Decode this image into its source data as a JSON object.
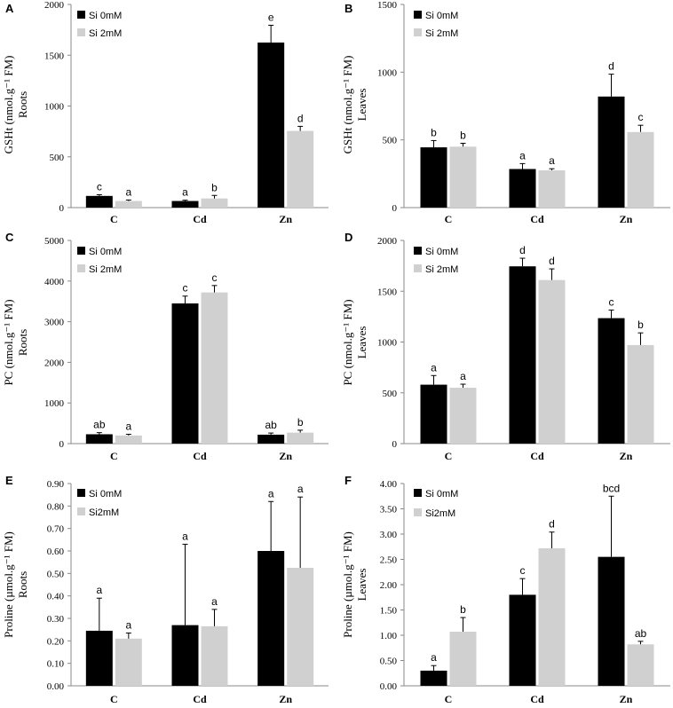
{
  "colors": {
    "series_0": "#000000",
    "series_1": "#d0d0d0",
    "axis": "#8a8a8a"
  },
  "chart_data": [
    {
      "panel": "A",
      "type": "bar",
      "ylabel_line1": "GSHt (nmol.g⁻¹ FM)",
      "ylabel_line2": "Roots",
      "categories": [
        "C",
        "Cd",
        "Zn"
      ],
      "ylim": [
        0,
        2000
      ],
      "yticks": [
        0,
        500,
        1000,
        1500,
        2000
      ],
      "ytick_labels": [
        "0",
        "500",
        "1000",
        "1500",
        "2000"
      ],
      "series": [
        {
          "name": "Si 0mM",
          "values": [
            115,
            65,
            1625
          ],
          "errors": [
            12,
            8,
            170
          ],
          "letters": [
            "c",
            "a",
            "e"
          ]
        },
        {
          "name": "Si 2mM",
          "values": [
            65,
            90,
            755
          ],
          "errors": [
            10,
            30,
            45
          ],
          "letters": [
            "a",
            "b",
            "d"
          ]
        }
      ]
    },
    {
      "panel": "B",
      "type": "bar",
      "ylabel_line1": "GSHt (nmol.g⁻¹ FM)",
      "ylabel_line2": "Leaves",
      "categories": [
        "C",
        "Cd",
        "Zn"
      ],
      "ylim": [
        0,
        1500
      ],
      "yticks": [
        0,
        500,
        1000,
        1500
      ],
      "ytick_labels": [
        "0",
        "500",
        "1000",
        "1500"
      ],
      "series": [
        {
          "name": "Si 0mM",
          "values": [
            445,
            285,
            820
          ],
          "errors": [
            50,
            40,
            165
          ],
          "letters": [
            "b",
            "a",
            "d"
          ]
        },
        {
          "name": "Si 2mM",
          "values": [
            450,
            275,
            558
          ],
          "errors": [
            25,
            12,
            50
          ],
          "letters": [
            "b",
            "a",
            "c"
          ]
        }
      ]
    },
    {
      "panel": "C",
      "type": "bar",
      "ylabel_line1": "PC (nmol.g⁻¹ FM)",
      "ylabel_line2": "Roots",
      "categories": [
        "C",
        "Cd",
        "Zn"
      ],
      "ylim": [
        0,
        5000
      ],
      "yticks": [
        0,
        1000,
        2000,
        3000,
        4000,
        5000
      ],
      "ytick_labels": [
        "0",
        "1000",
        "2000",
        "3000",
        "4000",
        "5000"
      ],
      "series": [
        {
          "name": "Si 0mM",
          "values": [
            230,
            3450,
            220
          ],
          "errors": [
            40,
            180,
            40
          ],
          "letters": [
            "ab",
            "c",
            "ab"
          ]
        },
        {
          "name": "Si 2mM",
          "values": [
            200,
            3720,
            270
          ],
          "errors": [
            30,
            170,
            60
          ],
          "letters": [
            "a",
            "c",
            "b"
          ]
        }
      ]
    },
    {
      "panel": "D",
      "type": "bar",
      "ylabel_line1": "PC (nmol.g⁻¹ FM)",
      "ylabel_line2": "Leaves",
      "categories": [
        "C",
        "Cd",
        "Zn"
      ],
      "ylim": [
        0,
        2000
      ],
      "yticks": [
        0,
        500,
        1000,
        1500,
        2000
      ],
      "ytick_labels": [
        "0",
        "500",
        "1000",
        "1500",
        "2000"
      ],
      "series": [
        {
          "name": "Si 0mM",
          "values": [
            580,
            1745,
            1235
          ],
          "errors": [
            90,
            80,
            80
          ],
          "letters": [
            "a",
            "d",
            "c"
          ]
        },
        {
          "name": "Si 2mM",
          "values": [
            550,
            1610,
            970
          ],
          "errors": [
            35,
            110,
            120
          ],
          "letters": [
            "a",
            "d",
            "b"
          ]
        }
      ]
    },
    {
      "panel": "E",
      "type": "bar",
      "ylabel_line1": "Proline (µmol.g⁻¹ FM)",
      "ylabel_line2": "Roots",
      "categories": [
        "C",
        "Cd",
        "Zn"
      ],
      "ylim": [
        0,
        0.9
      ],
      "yticks": [
        0,
        0.1,
        0.2,
        0.3,
        0.4,
        0.5,
        0.6,
        0.7,
        0.8,
        0.9
      ],
      "ytick_labels": [
        "0.00",
        "0.10",
        "0.20",
        "0.30",
        "0.40",
        "0.50",
        "0.60",
        "0.70",
        "0.80",
        "0.90"
      ],
      "series": [
        {
          "name": "Si 0mM",
          "values": [
            0.245,
            0.27,
            0.6
          ],
          "errors": [
            0.145,
            0.36,
            0.22
          ],
          "letters": [
            "a",
            "a",
            "a"
          ]
        },
        {
          "name": "Si2mM",
          "values": [
            0.21,
            0.265,
            0.525
          ],
          "errors": [
            0.025,
            0.075,
            0.315
          ],
          "letters": [
            "a",
            "a",
            "a"
          ]
        }
      ]
    },
    {
      "panel": "F",
      "type": "bar",
      "ylabel_line1": "Proline (µmol.g⁻¹ FM)",
      "ylabel_line2": "Leaves",
      "categories": [
        "C",
        "Cd",
        "Zn"
      ],
      "ylim": [
        0,
        4
      ],
      "yticks": [
        0,
        0.5,
        1,
        1.5,
        2,
        2.5,
        3,
        3.5,
        4
      ],
      "ytick_labels": [
        "0.00",
        "0.50",
        "1.00",
        "1.50",
        "2.00",
        "2.50",
        "3.00",
        "3.50",
        "4.00"
      ],
      "series": [
        {
          "name": "Si 0mM",
          "values": [
            0.3,
            1.8,
            2.55
          ],
          "errors": [
            0.1,
            0.32,
            1.2
          ],
          "letters": [
            "a",
            "c",
            "bcd"
          ]
        },
        {
          "name": "Si2mM",
          "values": [
            1.07,
            2.72,
            0.82
          ],
          "errors": [
            0.28,
            0.32,
            0.06
          ],
          "letters": [
            "b",
            "d",
            "ab"
          ]
        }
      ]
    }
  ]
}
